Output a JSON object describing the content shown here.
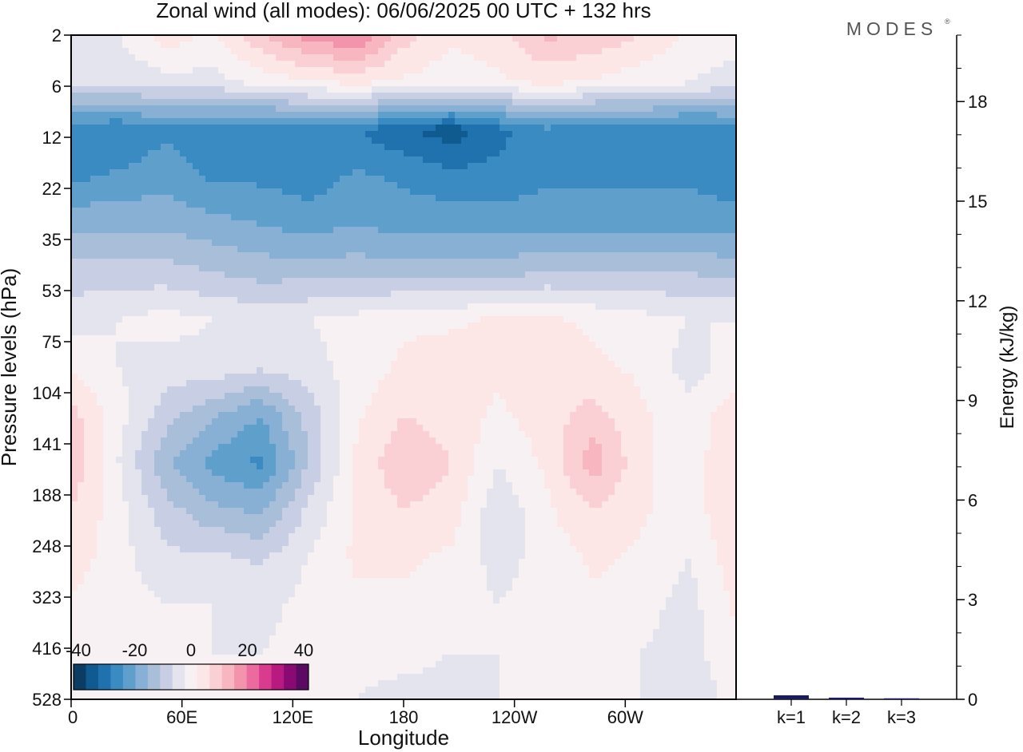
{
  "header": {
    "title": "Zonal wind (all modes):  06/06/2025  00 UTC  + 132 hrs",
    "logo": "MODES"
  },
  "chart_data": [
    {
      "type": "heatmap",
      "title": "Zonal wind (all modes):  06/06/2025  00 UTC  + 132 hrs",
      "xlabel": "Longitude",
      "ylabel": "Pressure levels (hPa)",
      "x_ticks": [
        "0",
        "60E",
        "120E",
        "180",
        "120W",
        "60W"
      ],
      "x_tick_values": [
        0,
        60,
        120,
        180,
        240,
        300
      ],
      "xlim": [
        0,
        360
      ],
      "y_ticks": [
        "2",
        "6",
        "12",
        "22",
        "35",
        "53",
        "75",
        "104",
        "141",
        "188",
        "248",
        "323",
        "416",
        "528"
      ],
      "colorbar": {
        "tick_labels": [
          "-40",
          "-20",
          "0",
          "20",
          "40"
        ],
        "levels": [
          -45,
          -40,
          -35,
          -30,
          -25,
          -20,
          -15,
          -10,
          -5,
          0,
          5,
          10,
          15,
          20,
          25,
          30,
          35,
          40,
          45
        ],
        "colors": [
          "#0b3d63",
          "#0f5a8e",
          "#1f72ad",
          "#3a8bc2",
          "#5f9fcc",
          "#87b0d4",
          "#a9bed9",
          "#c8cee3",
          "#e3e4ee",
          "#f7f1f4",
          "#fde6e6",
          "#fbd0d4",
          "#f8b6c1",
          "#f393ac",
          "#ec6a9f",
          "#d93c8e",
          "#b81a80",
          "#8a0a74",
          "#5a0a63"
        ],
        "placement": "bottom-left"
      },
      "contour_field": [
        [
          -2,
          0,
          8,
          4,
          14,
          22,
          26,
          12,
          6,
          8,
          16,
          14,
          10,
          4,
          2
        ],
        [
          -4,
          -4,
          -2,
          -2,
          2,
          4,
          6,
          4,
          2,
          4,
          6,
          4,
          2,
          0,
          -2
        ],
        [
          -28,
          -30,
          -26,
          -28,
          -30,
          -28,
          -30,
          -34,
          -38,
          -32,
          -26,
          -30,
          -28,
          -30,
          -28
        ],
        [
          -26,
          -24,
          -22,
          -26,
          -26,
          -28,
          -24,
          -26,
          -28,
          -28,
          -26,
          -26,
          -26,
          -26,
          -28
        ],
        [
          -16,
          -16,
          -16,
          -18,
          -20,
          -22,
          -20,
          -22,
          -22,
          -22,
          -22,
          -22,
          -22,
          -22,
          -22
        ],
        [
          -8,
          -8,
          -8,
          -10,
          -12,
          -12,
          -12,
          -12,
          -12,
          -12,
          -10,
          -10,
          -10,
          -10,
          -12
        ],
        [
          -2,
          0,
          2,
          0,
          -2,
          0,
          2,
          4,
          4,
          6,
          6,
          4,
          2,
          0,
          0
        ],
        [
          4,
          0,
          -2,
          -2,
          -4,
          -2,
          2,
          6,
          8,
          6,
          10,
          6,
          4,
          -2,
          2
        ],
        [
          12,
          2,
          -8,
          -14,
          -20,
          -8,
          4,
          10,
          8,
          4,
          8,
          12,
          6,
          2,
          8
        ],
        [
          14,
          0,
          -14,
          -22,
          -26,
          -10,
          6,
          14,
          10,
          0,
          6,
          18,
          6,
          2,
          10
        ],
        [
          10,
          2,
          -8,
          -14,
          -16,
          -4,
          6,
          10,
          8,
          -4,
          4,
          10,
          6,
          2,
          10
        ],
        [
          8,
          2,
          -4,
          -4,
          -6,
          0,
          6,
          6,
          4,
          -2,
          2,
          6,
          4,
          0,
          8
        ],
        [
          4,
          2,
          0,
          0,
          -2,
          2,
          4,
          4,
          2,
          0,
          2,
          4,
          2,
          -2,
          6
        ],
        [
          2,
          2,
          2,
          0,
          0,
          2,
          2,
          2,
          0,
          0,
          2,
          2,
          0,
          -2,
          4
        ],
        [
          2,
          0,
          0,
          0,
          0,
          0,
          0,
          -2,
          -2,
          0,
          0,
          0,
          0,
          -4,
          2
        ]
      ]
    },
    {
      "type": "bar",
      "ylabel": "Energy (kJ/kg)",
      "categories": [
        "k=1",
        "k=2",
        "k=3"
      ],
      "values": [
        0.12,
        0.05,
        0.03
      ],
      "ylim": [
        0,
        20
      ],
      "y_ticks": [
        0,
        3,
        6,
        9,
        12,
        15,
        18
      ],
      "y_axis_side": "right",
      "bar_color": "#1a1a5e"
    }
  ]
}
